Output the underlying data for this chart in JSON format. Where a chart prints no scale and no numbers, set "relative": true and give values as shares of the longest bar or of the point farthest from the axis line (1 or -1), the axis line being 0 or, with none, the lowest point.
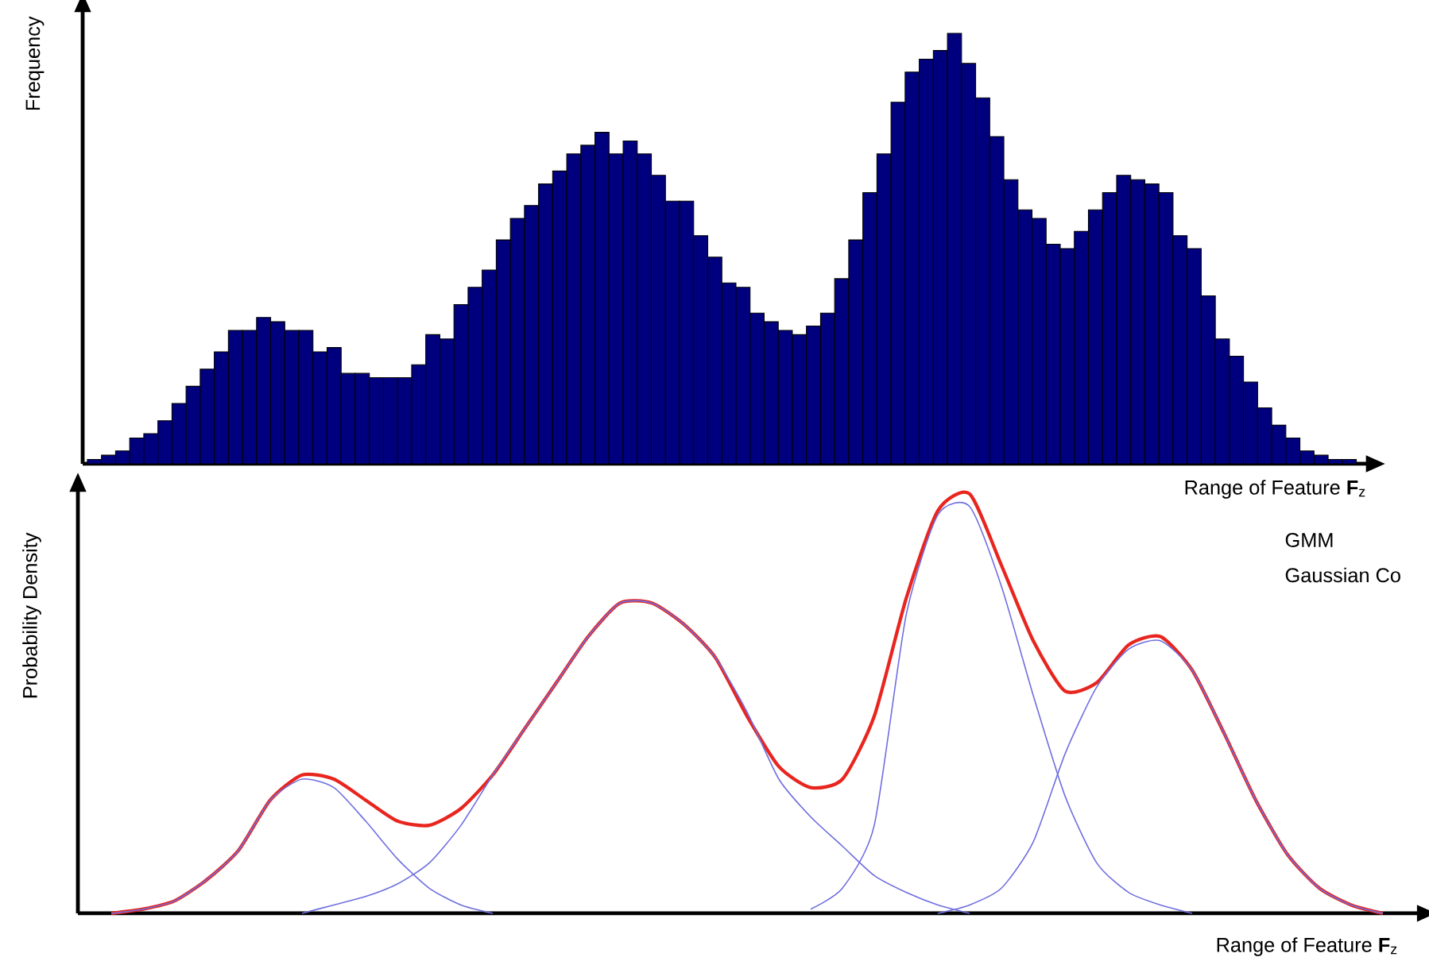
{
  "chart_data": [
    {
      "type": "bar",
      "relative": true,
      "color": "#00007f",
      "xlabel": "Range of Feature **F**$_{z}$",
      "ylabel": "Frequency",
      "categories": [
        null,
        null,
        null,
        null,
        null,
        null,
        null,
        null,
        null,
        null,
        null,
        null,
        null,
        null,
        null,
        null,
        null,
        null,
        null,
        null,
        null,
        null,
        null,
        null,
        null,
        null,
        null,
        null,
        null,
        null,
        null,
        null,
        null,
        null,
        null,
        null,
        null,
        null,
        null,
        null,
        null,
        null,
        null,
        null,
        null,
        null,
        null,
        null,
        null,
        null,
        null,
        null,
        null,
        null,
        null,
        null,
        null,
        null,
        null,
        null,
        null,
        null,
        null,
        null,
        null,
        null,
        null,
        null,
        null,
        null,
        null,
        null,
        null,
        null,
        null,
        null,
        null,
        null,
        null,
        null,
        null,
        null,
        null,
        null,
        null,
        null,
        null,
        null,
        null,
        null
      ],
      "values": [
        0.01,
        0.02,
        0.03,
        0.06,
        0.07,
        0.1,
        0.14,
        0.18,
        0.22,
        0.26,
        0.31,
        0.31,
        0.34,
        0.33,
        0.31,
        0.31,
        0.26,
        0.27,
        0.21,
        0.21,
        0.2,
        0.2,
        0.2,
        0.23,
        0.3,
        0.29,
        0.37,
        0.41,
        0.45,
        0.52,
        0.57,
        0.6,
        0.65,
        0.68,
        0.72,
        0.74,
        0.77,
        0.72,
        0.75,
        0.72,
        0.67,
        0.61,
        0.61,
        0.53,
        0.48,
        0.42,
        0.41,
        0.35,
        0.33,
        0.31,
        0.3,
        0.32,
        0.35,
        0.43,
        0.52,
        0.63,
        0.72,
        0.84,
        0.91,
        0.94,
        0.96,
        1,
        0.93,
        0.85,
        0.76,
        0.66,
        0.59,
        0.57,
        0.51,
        0.5,
        0.54,
        0.59,
        0.63,
        0.67,
        0.66,
        0.65,
        0.63,
        0.53,
        0.5,
        0.39,
        0.29,
        0.25,
        0.19,
        0.13,
        0.09,
        0.06,
        0.03,
        0.02,
        0.01,
        0.01
      ]
    },
    {
      "type": "line",
      "relative": true,
      "xlabel": "Range of Feature **F**$_{z}$",
      "ylabel": "Probability Density",
      "annotations": [
        "GMM",
        "Gaussian Co"
      ],
      "categories": [
        null,
        null,
        null,
        null,
        null,
        null,
        null,
        null,
        null,
        null,
        null,
        null,
        null,
        null,
        null,
        null,
        null,
        null,
        null,
        null,
        null,
        null,
        null,
        null,
        null,
        null,
        null,
        null,
        null,
        null,
        null,
        null,
        null,
        null,
        null,
        null,
        null,
        null,
        null,
        null,
        null
      ],
      "series": [
        {
          "color": "#6f6fe0",
          "values": [
            0,
            0.01,
            0.03,
            0.08,
            0.15,
            0.27,
            0.32,
            0.3,
            0.22,
            0.13,
            0.06,
            0.02,
            0,
            null,
            null,
            null,
            null,
            null,
            null,
            null,
            null,
            null,
            null,
            null,
            null,
            null,
            null,
            null,
            null,
            null,
            null,
            null,
            null,
            null,
            null,
            null,
            null,
            null,
            null,
            null,
            null
          ]
        },
        {
          "color": "#6f6fe0",
          "values": [
            null,
            null,
            null,
            null,
            null,
            null,
            0,
            0.02,
            0.04,
            0.07,
            0.12,
            0.21,
            0.33,
            0.44,
            0.55,
            0.66,
            0.74,
            0.74,
            0.69,
            0.61,
            0.48,
            0.32,
            0.23,
            0.16,
            0.09,
            0.05,
            0.02,
            0,
            null,
            null,
            null,
            null,
            null,
            null,
            null,
            null,
            null,
            null,
            null,
            null,
            null
          ]
        },
        {
          "color": "#6f6fe0",
          "values": [
            null,
            null,
            null,
            null,
            null,
            null,
            null,
            null,
            null,
            null,
            null,
            null,
            null,
            null,
            null,
            null,
            null,
            null,
            null,
            null,
            null,
            null,
            0.01,
            0.06,
            0.21,
            0.71,
            0.95,
            0.97,
            0.78,
            0.52,
            0.28,
            0.12,
            0.05,
            0.02,
            0,
            null,
            null,
            null,
            null,
            null,
            null
          ]
        },
        {
          "color": "#6f6fe0",
          "values": [
            null,
            null,
            null,
            null,
            null,
            null,
            null,
            null,
            null,
            null,
            null,
            null,
            null,
            null,
            null,
            null,
            null,
            null,
            null,
            null,
            null,
            null,
            null,
            null,
            null,
            null,
            0,
            0.02,
            0.06,
            0.17,
            0.38,
            0.54,
            0.63,
            0.65,
            0.58,
            0.43,
            0.27,
            0.14,
            0.06,
            0.02,
            0
          ]
        },
        {
          "color": "#e8251e",
          "values": [
            0,
            0.01,
            0.03,
            0.08,
            0.15,
            0.27,
            0.33,
            0.32,
            0.27,
            0.22,
            0.21,
            0.25,
            0.33,
            0.44,
            0.55,
            0.66,
            0.74,
            0.74,
            0.69,
            0.61,
            0.47,
            0.35,
            0.3,
            0.32,
            0.47,
            0.75,
            0.96,
            1,
            0.83,
            0.65,
            0.53,
            0.55,
            0.64,
            0.66,
            0.58,
            0.43,
            0.27,
            0.14,
            0.06,
            0.02,
            0
          ]
        }
      ]
    }
  ]
}
